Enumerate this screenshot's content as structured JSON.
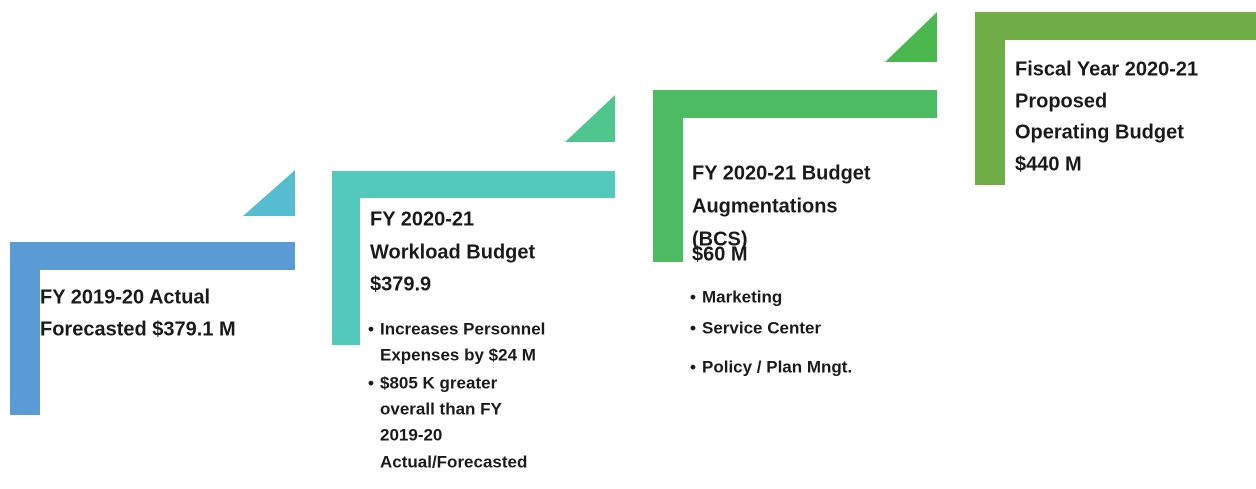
{
  "steps": [
    {
      "lines": [
        "FY 2019-20 Actual",
        "Forecasted $379.1 M"
      ],
      "bullets": []
    },
    {
      "lines": [
        "FY 2020-21",
        "Workload Budget",
        "$379.9"
      ],
      "bullets": [
        [
          "Increases Personnel",
          "Expenses by $24  M"
        ],
        [
          "$805 K greater",
          "overall than FY",
          "2019-20",
          "Actual/Forecasted"
        ]
      ]
    },
    {
      "lines": [
        "FY 2020-21 Budget",
        "Augmentations",
        "(BCS)",
        "$60 M"
      ],
      "bullets": [
        [
          "Marketing"
        ],
        [
          "Service Center"
        ],
        [
          "Policy / Plan Mngt."
        ]
      ]
    },
    {
      "lines": [
        "Fiscal Year 2020-21",
        "Proposed",
        "Operating Budget",
        "$440 M"
      ],
      "bullets": []
    }
  ]
}
